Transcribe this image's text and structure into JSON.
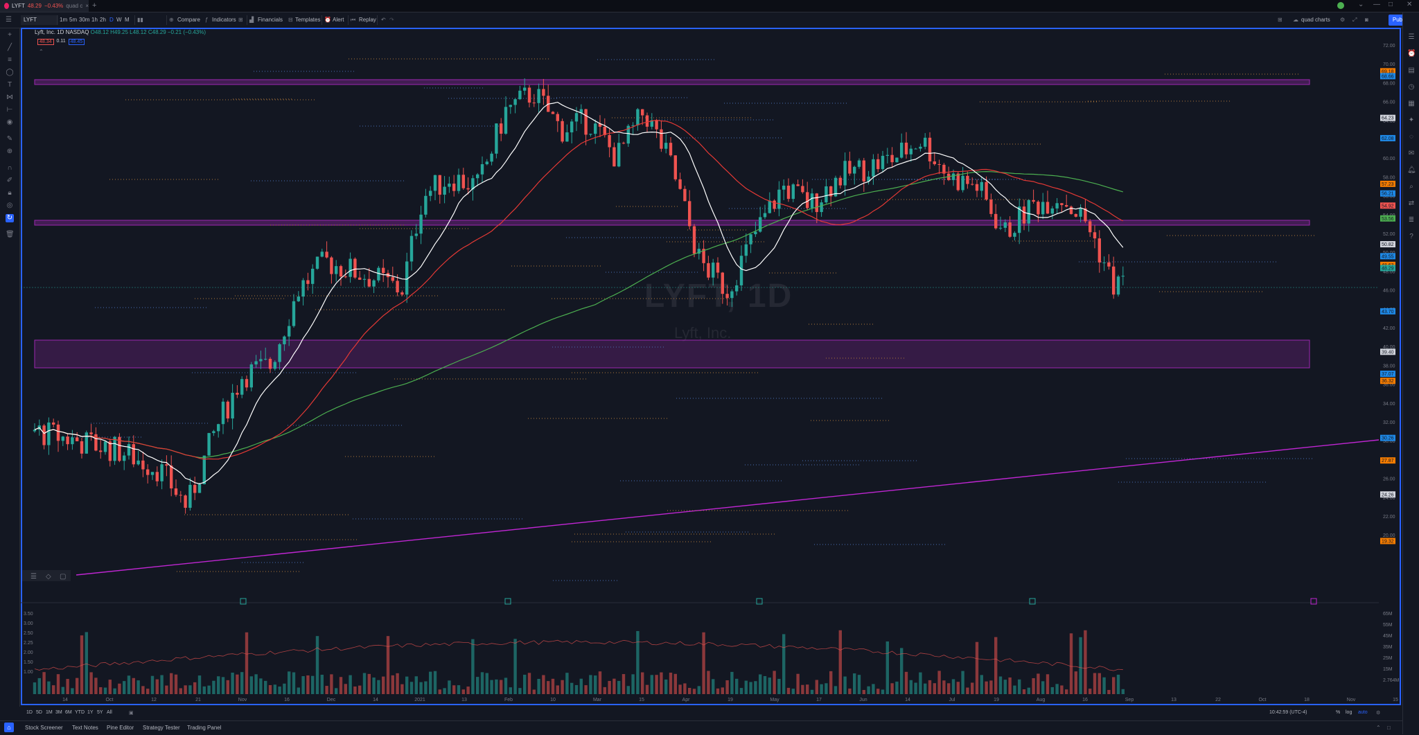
{
  "tab": {
    "title": "LYFT",
    "price": "48.29",
    "change": "−0.43%",
    "label": "quad c"
  },
  "toolbar": {
    "symbol": "LYFT",
    "intervals": [
      "1m",
      "5m",
      "30m",
      "1h",
      "2h",
      "D",
      "W",
      "M"
    ],
    "compare": "Compare",
    "indicators": "Indicators",
    "financials": "Financials",
    "templates": "Templates",
    "alert": "Alert",
    "replay": "Replay",
    "layout_name": "quad charts",
    "publish": "Publish"
  },
  "legend": {
    "name": "Lyft, Inc.",
    "interval": "1D",
    "exchange": "NASDAQ",
    "ohlc": "O48.12 H49.25 L48.12 C48.29 −0.21 (−0.43%)",
    "bid": "48.34",
    "spread": "0.11",
    "ask": "48.45"
  },
  "watermark": {
    "symbol": "LYFT, 1D",
    "name": "Lyft, Inc."
  },
  "colors": {
    "up": "#26a69a",
    "down": "#ef5350",
    "ma_fast": "#ffffff",
    "ma_mid": "#e53935",
    "ma_slow": "#4caf50",
    "zone": "#9c27b0",
    "accent": "#2962ff"
  },
  "price_axis": [
    "72.00",
    "70.00",
    "68.00",
    "66.00",
    "64.00",
    "62.00",
    "60.00",
    "58.00",
    "56.00",
    "54.00",
    "52.00",
    "50.00",
    "48.00",
    "46.00",
    "44.00",
    "42.00",
    "40.00",
    "38.00",
    "36.00",
    "34.00",
    "32.00",
    "30.00",
    "28.00",
    "26.00",
    "24.00",
    "22.00",
    "20.00"
  ],
  "price_tags": [
    {
      "v": "69.18",
      "c": "#f57c00"
    },
    {
      "v": "68.66",
      "c": "#1e88e5"
    },
    {
      "v": "64.23",
      "c": "#d1d4dc"
    },
    {
      "v": "62.08",
      "c": "#1e88e5"
    },
    {
      "v": "57.23",
      "c": "#f57c00"
    },
    {
      "v": "56.21",
      "c": "#1e88e5"
    },
    {
      "v": "54.92",
      "c": "#ef5350"
    },
    {
      "v": "53.56",
      "c": "#4caf50"
    },
    {
      "v": "50.82",
      "c": "#d1d4dc"
    },
    {
      "v": "49.55",
      "c": "#1e88e5"
    },
    {
      "v": "48.63",
      "c": "#f57c00"
    },
    {
      "v": "48.29",
      "c": "#26a69a"
    },
    {
      "v": "43.70",
      "c": "#1e88e5"
    },
    {
      "v": "39.40",
      "c": "#d1d4dc"
    },
    {
      "v": "37.07",
      "c": "#1e88e5"
    },
    {
      "v": "36.32",
      "c": "#f57c00"
    },
    {
      "v": "30.26",
      "c": "#1e88e5"
    },
    {
      "v": "27.87",
      "c": "#f57c00"
    },
    {
      "v": "24.26",
      "c": "#d1d4dc"
    },
    {
      "v": "19.32",
      "c": "#f57c00"
    }
  ],
  "time_axis": [
    "14",
    "Oct",
    "12",
    "21",
    "Nov",
    "16",
    "Dec",
    "14",
    "2021",
    "13",
    "Feb",
    "10",
    "Mar",
    "15",
    "Apr",
    "19",
    "May",
    "17",
    "Jun",
    "14",
    "Jul",
    "19",
    "Aug",
    "16",
    "Sep",
    "13",
    "22",
    "Oct",
    "18",
    "Nov",
    "15"
  ],
  "volume_axis_left": [
    "3.50",
    "3.00",
    "2.50",
    "2.25",
    "2.00",
    "1.50",
    "1.00"
  ],
  "volume_axis_right": [
    "65M",
    "55M",
    "45M",
    "35M",
    "25M",
    "15M",
    "2.764M"
  ],
  "range_buttons": [
    "1D",
    "5D",
    "1M",
    "3M",
    "6M",
    "YTD",
    "1Y",
    "5Y",
    "All"
  ],
  "clock": "10:42:59 (UTC-4)",
  "scale_buttons": [
    "%",
    "log",
    "auto"
  ],
  "bottom_tabs": [
    "Stock Screener",
    "Text Notes",
    "Pine Editor",
    "Strategy Tester",
    "Trading Panel"
  ]
}
